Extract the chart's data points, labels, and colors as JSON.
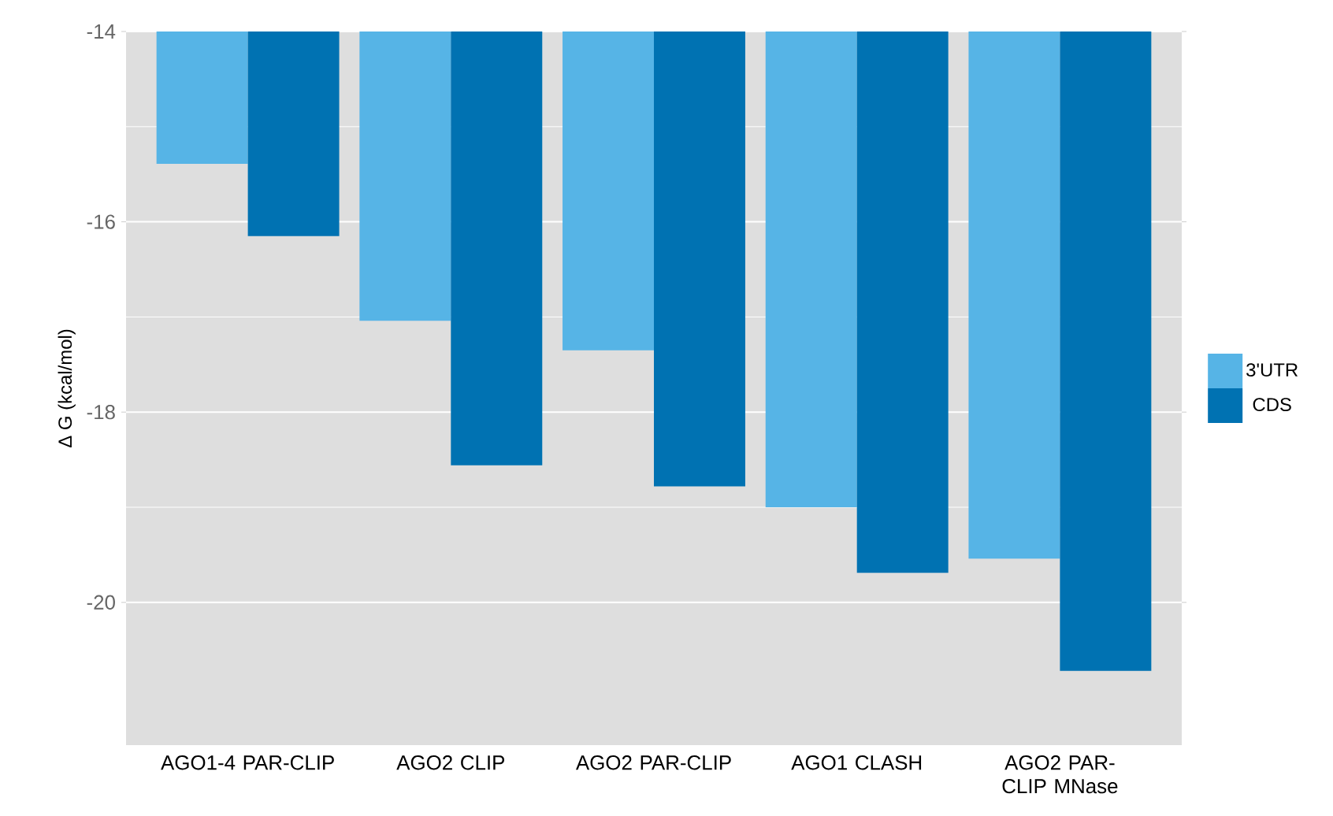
{
  "chart_data": {
    "type": "bar",
    "ylabel": "Δ G (kcal/mol)",
    "categories": [
      "AGO1-4 PAR-CLIP",
      "AGO2 CLIP",
      "AGO2 PAR-CLIP",
      "AGO1 CLASH",
      "AGO2 PAR-CLIP MNase"
    ],
    "series": [
      {
        "name": "3'UTR",
        "color": "#56b4e6",
        "values": [
          -15.39,
          -17.04,
          -17.35,
          -19.0,
          -19.54
        ]
      },
      {
        "name": "CDS",
        "color": "#0072b2",
        "values": [
          -16.15,
          -18.56,
          -18.78,
          -19.69,
          -20.72
        ]
      }
    ],
    "ylim": [
      -21.5,
      -14
    ],
    "yticks": [
      -14,
      -16,
      -18,
      -20
    ],
    "grid": "y",
    "legend": "right"
  }
}
